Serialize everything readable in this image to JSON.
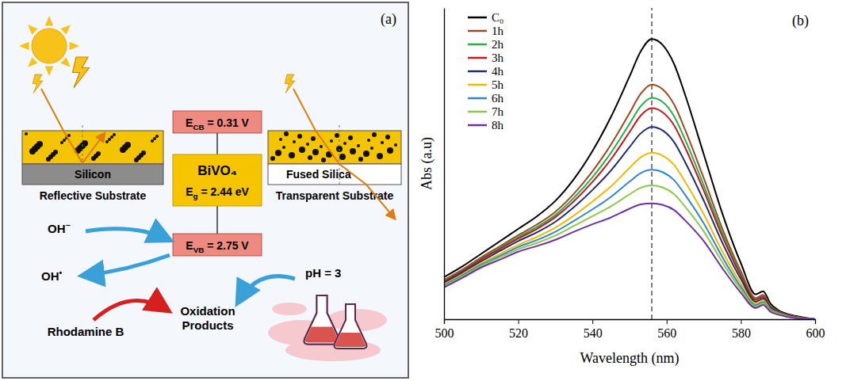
{
  "diagram": {
    "panel_label": "(a)",
    "cb_level": [
      {
        "t": "E"
      },
      {
        "t": "CB",
        "sub": true
      },
      {
        "t": " = 0.31 V"
      }
    ],
    "semiconductor": "BiVO₄",
    "band_gap": [
      {
        "t": "E"
      },
      {
        "t": "g",
        "sub": true
      },
      {
        "t": " = 2.44 eV"
      }
    ],
    "vb_level": [
      {
        "t": "E"
      },
      {
        "t": "VB",
        "sub": true
      },
      {
        "t": " = 2.75 V"
      }
    ],
    "substrates": [
      {
        "name": "Silicon",
        "caption": "Reflective Substrate"
      },
      {
        "name": "Fused Silica",
        "caption": "Transparent Substrate"
      }
    ],
    "hydroxide": [
      {
        "t": "OH"
      },
      {
        "t": "−",
        "sup": true
      }
    ],
    "radical": [
      {
        "t": "OH"
      },
      {
        "t": "•",
        "sup": true
      }
    ],
    "dye": "Rhodamine B",
    "products": "Oxidation Products",
    "ph": "pH = 3"
  },
  "chart_data": {
    "type": "line",
    "title": "(b)",
    "xlabel": "Wavelength (nm)",
    "ylabel": "Abs (a.u)",
    "xlim": [
      500,
      600
    ],
    "xticks": [
      500,
      520,
      540,
      560,
      580,
      600
    ],
    "ylim": [
      0,
      1
    ],
    "tick_labels": "x",
    "grid": false,
    "legend": "top-left",
    "reference_line": 556,
    "x": [
      500,
      505,
      510,
      515,
      520,
      525,
      530,
      535,
      540,
      545,
      550,
      553,
      556,
      559,
      562,
      565,
      570,
      575,
      580,
      584,
      586,
      588,
      590,
      595,
      600
    ],
    "series": [
      {
        "name": "C₀",
        "color": "#000000",
        "values": [
          0.135,
          0.17,
          0.21,
          0.25,
          0.29,
          0.33,
          0.38,
          0.45,
          0.54,
          0.65,
          0.78,
          0.86,
          0.9,
          0.88,
          0.82,
          0.72,
          0.53,
          0.34,
          0.18,
          0.08,
          0.09,
          0.05,
          0.03,
          0.01,
          0
        ]
      },
      {
        "name": "1h",
        "color": "#9c4a1e",
        "values": [
          0.126,
          0.16,
          0.198,
          0.234,
          0.27,
          0.304,
          0.345,
          0.403,
          0.475,
          0.561,
          0.662,
          0.724,
          0.754,
          0.738,
          0.69,
          0.608,
          0.453,
          0.291,
          0.154,
          0.068,
          0.078,
          0.043,
          0.026,
          0.008,
          0
        ]
      },
      {
        "name": "2h",
        "color": "#22b04b",
        "values": [
          0.123,
          0.157,
          0.194,
          0.229,
          0.264,
          0.296,
          0.335,
          0.39,
          0.456,
          0.535,
          0.628,
          0.684,
          0.711,
          0.697,
          0.652,
          0.576,
          0.43,
          0.277,
          0.146,
          0.064,
          0.074,
          0.041,
          0.025,
          0.007,
          0
        ]
      },
      {
        "name": "3h",
        "color": "#c0191f",
        "values": [
          0.121,
          0.155,
          0.192,
          0.225,
          0.259,
          0.29,
          0.328,
          0.379,
          0.441,
          0.514,
          0.601,
          0.654,
          0.678,
          0.664,
          0.623,
          0.551,
          0.413,
          0.266,
          0.14,
          0.062,
          0.072,
          0.039,
          0.024,
          0.007,
          0
        ]
      },
      {
        "name": "4h",
        "color": "#1f2d6b",
        "values": [
          0.117,
          0.15,
          0.186,
          0.219,
          0.251,
          0.279,
          0.313,
          0.36,
          0.415,
          0.478,
          0.553,
          0.597,
          0.618,
          0.606,
          0.569,
          0.504,
          0.381,
          0.246,
          0.129,
          0.056,
          0.066,
          0.036,
          0.022,
          0.006,
          0
        ]
      },
      {
        "name": "5h",
        "color": "#f5b800",
        "values": [
          0.112,
          0.145,
          0.18,
          0.209,
          0.239,
          0.264,
          0.294,
          0.333,
          0.378,
          0.427,
          0.486,
          0.52,
          0.535,
          0.525,
          0.496,
          0.441,
          0.337,
          0.218,
          0.114,
          0.05,
          0.06,
          0.032,
          0.02,
          0.005,
          0
        ]
      },
      {
        "name": "6h",
        "color": "#2f86c8",
        "values": [
          0.109,
          0.141,
          0.175,
          0.203,
          0.232,
          0.254,
          0.281,
          0.316,
          0.353,
          0.393,
          0.442,
          0.469,
          0.48,
          0.472,
          0.447,
          0.399,
          0.308,
          0.2,
          0.104,
          0.045,
          0.055,
          0.03,
          0.018,
          0.004,
          0
        ]
      },
      {
        "name": "7h",
        "color": "#8cc84b",
        "values": [
          0.106,
          0.137,
          0.171,
          0.198,
          0.225,
          0.245,
          0.269,
          0.3,
          0.331,
          0.363,
          0.401,
          0.422,
          0.43,
          0.423,
          0.402,
          0.361,
          0.282,
          0.183,
          0.095,
          0.041,
          0.051,
          0.027,
          0.017,
          0.003,
          0
        ]
      },
      {
        "name": "8h",
        "color": "#7030a0",
        "values": [
          0.102,
          0.133,
          0.166,
          0.191,
          0.217,
          0.235,
          0.255,
          0.281,
          0.305,
          0.327,
          0.355,
          0.369,
          0.372,
          0.367,
          0.351,
          0.317,
          0.251,
          0.164,
          0.085,
          0.036,
          0.046,
          0.024,
          0.015,
          0.003,
          0
        ]
      }
    ]
  }
}
